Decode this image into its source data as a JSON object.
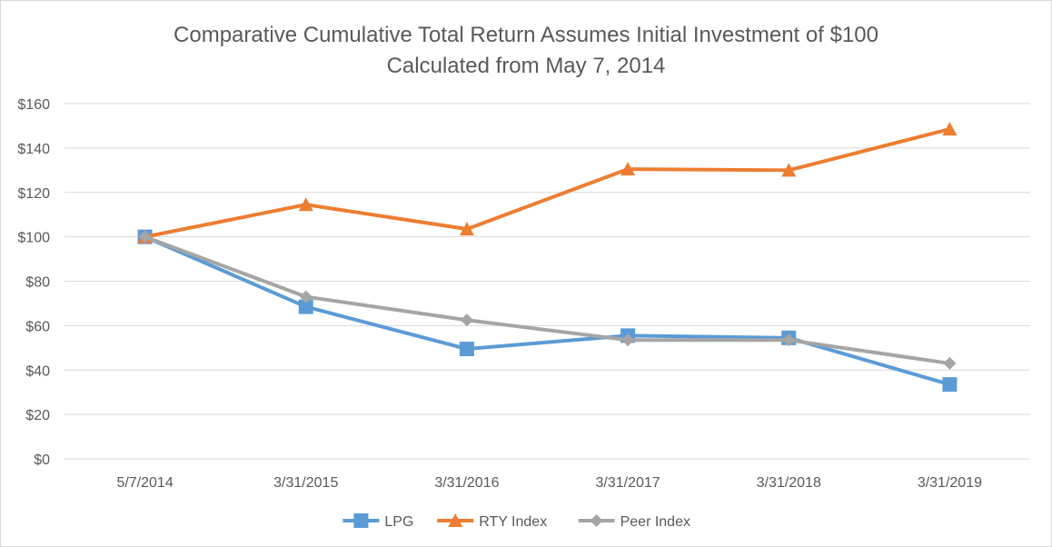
{
  "chart_data": {
    "type": "line",
    "title": "Comparative Cumulative Total Return Assumes Initial Investment of $100",
    "subtitle": "Calculated from May 7, 2014",
    "categories": [
      "5/7/2014",
      "3/31/2015",
      "3/31/2016",
      "3/31/2017",
      "3/31/2018",
      "3/31/2019"
    ],
    "series": [
      {
        "name": "LPG",
        "values": [
          100,
          68.5,
          49.5,
          55.5,
          54.5,
          33.5
        ],
        "color": "#5b9bd5",
        "marker": "square"
      },
      {
        "name": "RTY Index",
        "values": [
          100,
          114.5,
          103.5,
          130.5,
          130,
          148.5
        ],
        "color": "#ed7d31",
        "marker": "triangle"
      },
      {
        "name": "Peer Index",
        "values": [
          100,
          73,
          62.5,
          53.5,
          53.5,
          43
        ],
        "color": "#a5a5a5",
        "marker": "diamond"
      }
    ],
    "ylim": [
      0,
      160
    ],
    "yticks": [
      "$0",
      "$20",
      "$40",
      "$60",
      "$80",
      "$100",
      "$120",
      "$140",
      "$160"
    ],
    "xlabel": "",
    "ylabel": "",
    "grid": true,
    "legend_position": "bottom"
  }
}
